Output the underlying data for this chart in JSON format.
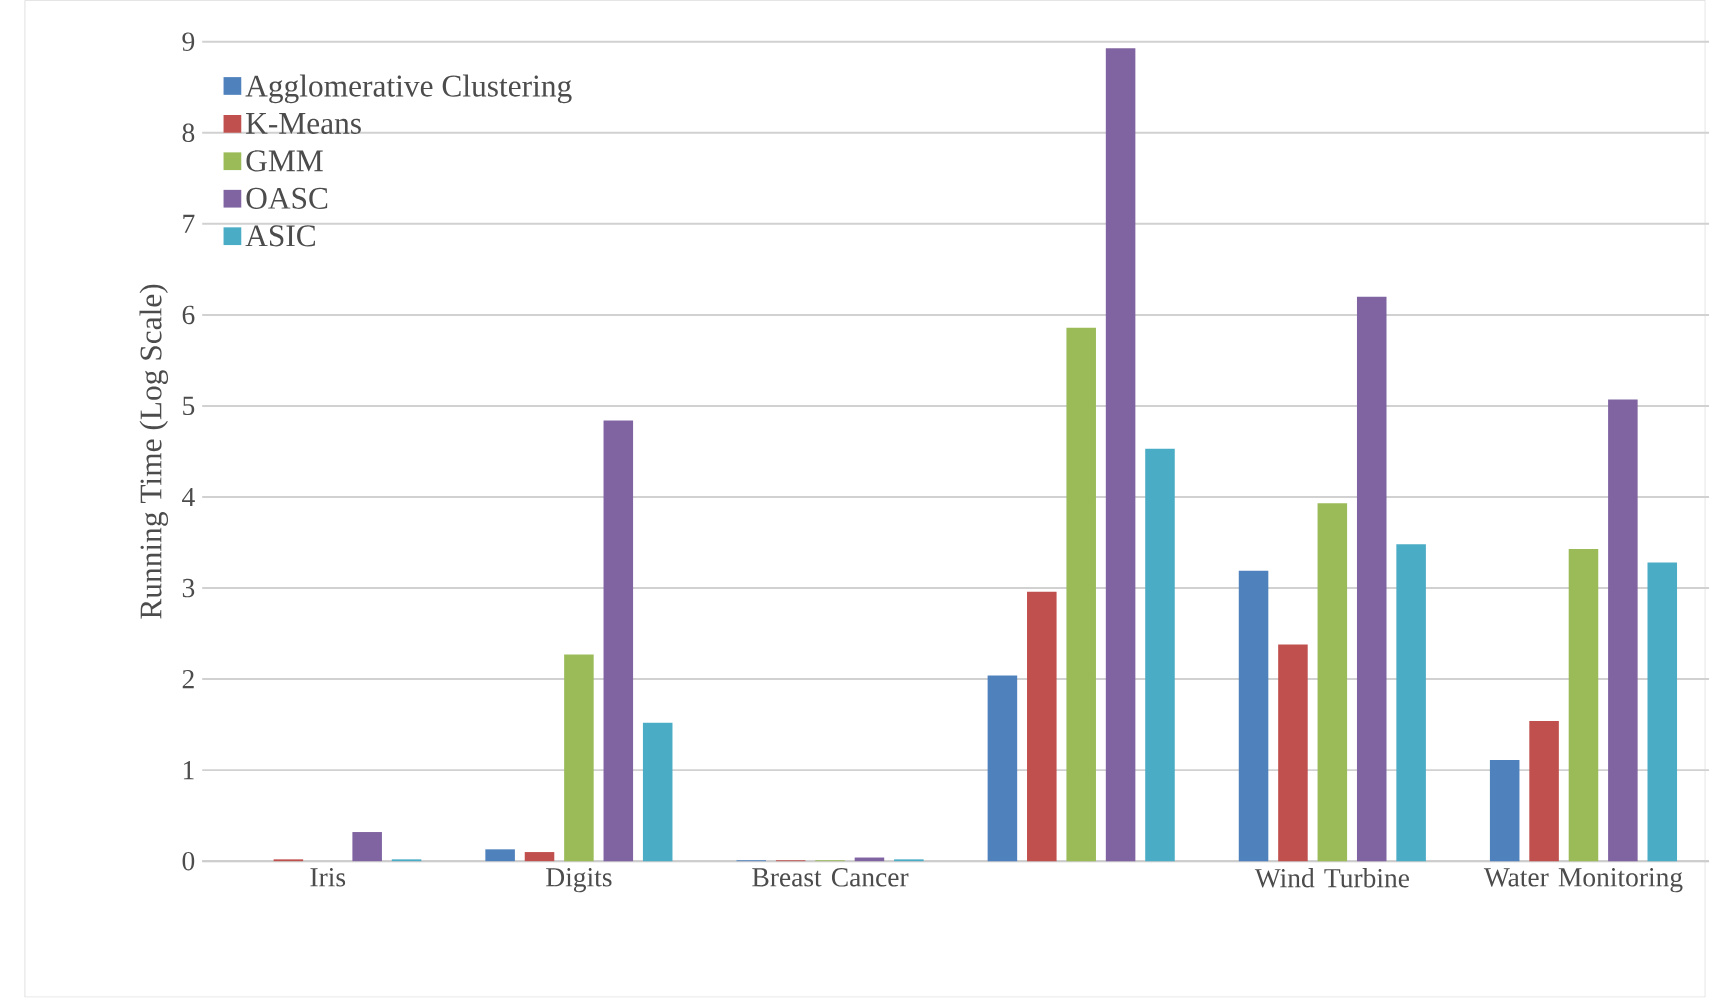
{
  "chart_data": {
    "type": "bar",
    "ylabel": "Running Time (Log Scale)",
    "categories": [
      "Iris",
      "Digits",
      "Breast Cancer",
      null,
      "Wind Turbine",
      "Water Monitoring"
    ],
    "series": [
      {
        "name": "Agglomerative Clustering",
        "color": "#4f81bd",
        "values": [
          0,
          0.13,
          0.01,
          2.04,
          3.19,
          1.11
        ]
      },
      {
        "name": "K-Means",
        "color": "#c0504d",
        "values": [
          0.02,
          0.1,
          0.01,
          2.96,
          2.38,
          1.54
        ]
      },
      {
        "name": "GMM",
        "color": "#9bbb59",
        "values": [
          0,
          2.27,
          0.01,
          5.86,
          3.93,
          3.43
        ]
      },
      {
        "name": "OASC",
        "color": "#8064a2",
        "values": [
          0.32,
          4.84,
          0.04,
          8.93,
          6.2,
          5.07
        ]
      },
      {
        "name": "ASIC",
        "color": "#4bacc6",
        "values": [
          0.02,
          1.52,
          0.02,
          4.53,
          3.48,
          3.28
        ]
      }
    ],
    "ylim": [
      0,
      9
    ],
    "yticks": [
      0,
      1,
      2,
      3,
      4,
      5,
      6,
      7,
      8,
      9
    ],
    "grid": "y",
    "legend": "top left"
  }
}
